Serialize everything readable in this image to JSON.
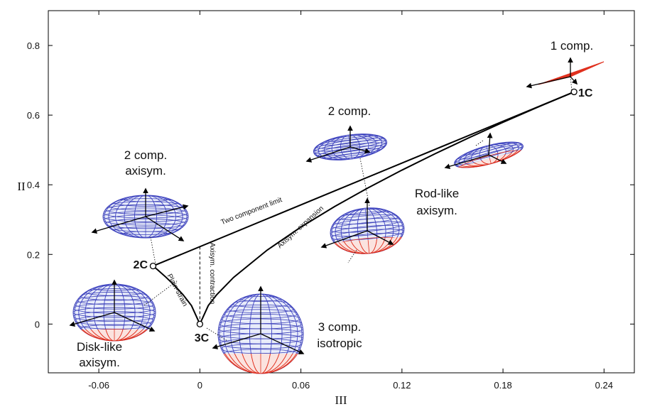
{
  "chart_data": {
    "type": "line",
    "xlabel": "III",
    "ylabel": "II",
    "xlim": [
      -0.09,
      0.258
    ],
    "ylim": [
      -0.14,
      0.9
    ],
    "xticks": [
      -0.06,
      0,
      0.06,
      0.12,
      0.18,
      0.24
    ],
    "yticks": [
      0,
      0.2,
      0.4,
      0.6,
      0.8
    ],
    "series": [
      {
        "name": "Two component limit",
        "color": "#000000",
        "style": "solid",
        "x": [
          -0.0278,
          0.2222
        ],
        "values": [
          0.1667,
          0.6667
        ]
      },
      {
        "name": "Axisym. expansion",
        "color": "#000000",
        "style": "solid",
        "x": [
          0,
          0.005,
          0.01,
          0.02,
          0.04,
          0.06,
          0.08,
          0.1,
          0.12,
          0.14,
          0.16,
          0.18,
          0.2,
          0.2222
        ],
        "values": [
          0,
          0.0531,
          0.0843,
          0.1339,
          0.2125,
          0.2785,
          0.3374,
          0.3915,
          0.4421,
          0.4899,
          0.5355,
          0.5793,
          0.6215,
          0.6667
        ]
      },
      {
        "name": "Axisym. contraction",
        "color": "#000000",
        "style": "solid",
        "x": [
          0,
          -0.005,
          -0.01,
          -0.015,
          -0.02,
          -0.025,
          -0.0278
        ],
        "values": [
          0,
          0.0531,
          0.0843,
          0.1105,
          0.1339,
          0.1554,
          0.1667
        ]
      },
      {
        "name": "Plain-strain",
        "color": "#000000",
        "style": "dashed",
        "x": [
          0,
          0
        ],
        "values": [
          0,
          0.2222
        ]
      }
    ],
    "points": {
      "labels": [
        "1C",
        "2C",
        "3C"
      ],
      "x": [
        0.2222,
        -0.0278,
        0
      ],
      "values": [
        0.6667,
        0.1667,
        0
      ]
    },
    "annotations": [
      "1 comp.",
      "2 comp.",
      "2 comp.",
      "axisym.",
      "Rod-like",
      "axisym.",
      "3 comp.",
      "isotropic",
      "Disk-like",
      "axisym."
    ]
  }
}
